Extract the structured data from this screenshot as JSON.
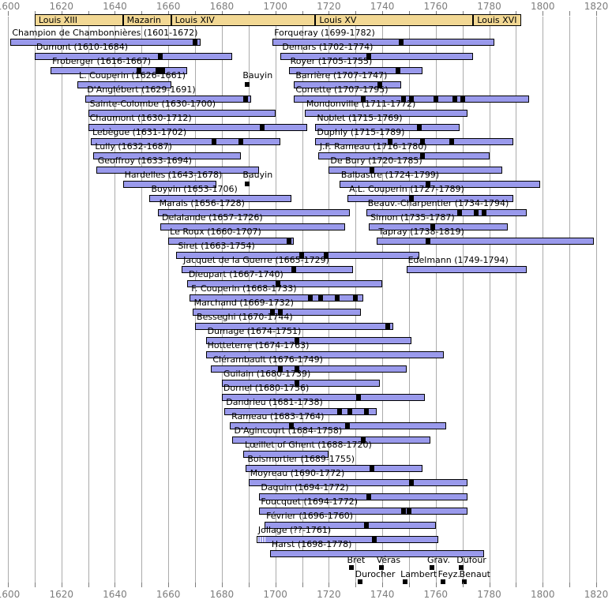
{
  "chart_data": {
    "type": "timeline",
    "title": "",
    "x_axis": {
      "min": 1600,
      "max": 1820,
      "label_step": 20,
      "grid_step": 10,
      "tick_labels": [
        "1600",
        "1620",
        "1640",
        "1660",
        "1680",
        "1700",
        "1720",
        "1740",
        "1760",
        "1780",
        "1800",
        "1820"
      ],
      "grid": true,
      "axis_positions": [
        "top",
        "bottom"
      ]
    },
    "reigns": [
      {
        "label": "Louis XIII",
        "start": 1610,
        "end": 1643
      },
      {
        "label": "Mazarin",
        "start": 1643,
        "end": 1661
      },
      {
        "label": "Louis XIV",
        "start": 1661,
        "end": 1715
      },
      {
        "label": "Louis XV",
        "start": 1715,
        "end": 1774
      },
      {
        "label": "Louis XVI",
        "start": 1774,
        "end": 1792
      }
    ],
    "composers": [
      {
        "row": 1,
        "side": "left",
        "label": "Champion de Chambonnières (1601-1672)",
        "start": 1601,
        "end": 1672,
        "publications": [
          1670
        ]
      },
      {
        "row": 2,
        "side": "left",
        "label": "Dumont (1610-1684)",
        "start": 1610,
        "end": 1684,
        "publications": [
          1657
        ]
      },
      {
        "row": 3,
        "side": "left",
        "label": "Froberger (1616-1667)",
        "start": 1616,
        "end": 1667,
        "publications": [
          1649,
          1656,
          1658
        ]
      },
      {
        "row": 4,
        "side": "left",
        "label": "L. Couperin (1626-1661)",
        "start": 1626,
        "end": 1661,
        "publications": []
      },
      {
        "row": 5,
        "side": "left",
        "label": "D'Anglébert (1629-1691)",
        "start": 1629,
        "end": 1691,
        "publications": [
          1689
        ]
      },
      {
        "row": 6,
        "side": "left",
        "label": "Sainte-Colombe (1630-1700)",
        "start": 1630,
        "end": 1700,
        "publications": []
      },
      {
        "row": 7,
        "side": "left",
        "label": "Chaumont (1630-1712)",
        "start": 1630,
        "end": 1712,
        "publications": [
          1695
        ]
      },
      {
        "row": 8,
        "side": "left",
        "label": "Lebègue (1631-1702)",
        "start": 1631,
        "end": 1702,
        "publications": [
          1677,
          1687
        ]
      },
      {
        "row": 9,
        "side": "left",
        "label": "Lully (1632-1687)",
        "start": 1632,
        "end": 1687,
        "publications": []
      },
      {
        "row": 10,
        "side": "left",
        "label": "Geoffroy (1633-1694)",
        "start": 1633,
        "end": 1694,
        "publications": []
      },
      {
        "row": 11,
        "side": "left",
        "label": "Hardelles (1643-1678)",
        "start": 1643,
        "end": 1678,
        "publications": []
      },
      {
        "row": 12,
        "side": "left",
        "label": "Boyvin (1653-1706)",
        "start": 1653,
        "end": 1706,
        "publications": []
      },
      {
        "row": 13,
        "side": "left",
        "label": "Marais (1656-1728)",
        "start": 1656,
        "end": 1728,
        "publications": []
      },
      {
        "row": 14,
        "side": "left",
        "label": "Delalande (1657-1726)",
        "start": 1657,
        "end": 1726,
        "publications": []
      },
      {
        "row": 15,
        "side": "left",
        "label": "Le Roux (1660-1707)",
        "start": 1660,
        "end": 1707,
        "publications": [
          1705
        ]
      },
      {
        "row": 16,
        "side": "left",
        "label": "Siret (1663-1754)",
        "start": 1663,
        "end": 1754,
        "publications": [
          1710,
          1719
        ]
      },
      {
        "row": 17,
        "side": "left",
        "label": "Jacquet de la Guerre (1665-1729)",
        "start": 1665,
        "end": 1729,
        "publications": [
          1707
        ]
      },
      {
        "row": 18,
        "side": "left",
        "label": "Dieupart (1667-1740)",
        "start": 1667,
        "end": 1740,
        "publications": [
          1701
        ]
      },
      {
        "row": 19,
        "side": "left",
        "label": "F. Couperin (1668-1733)",
        "start": 1668,
        "end": 1733,
        "publications": [
          1713,
          1717,
          1723,
          1730
        ]
      },
      {
        "row": 20,
        "side": "left",
        "label": "Marchand (1669-1732)",
        "start": 1669,
        "end": 1732,
        "publications": [
          1699,
          1702
        ]
      },
      {
        "row": 21,
        "side": "left",
        "label": "Besseghi (1670-1744)",
        "start": 1670,
        "end": 1744,
        "publications": [
          1742
        ]
      },
      {
        "row": 22,
        "side": "left",
        "label": "Dumage (1674-1751)",
        "start": 1674,
        "end": 1751,
        "publications": [
          1708
        ]
      },
      {
        "row": 23,
        "side": "left",
        "label": "Hotteterre (1674-1763)",
        "start": 1674,
        "end": 1763,
        "publications": []
      },
      {
        "row": 24,
        "side": "left",
        "label": "Clérambault (1676-1749)",
        "start": 1676,
        "end": 1749,
        "publications": [
          1702,
          1708
        ]
      },
      {
        "row": 25,
        "side": "left",
        "label": "Guilain (1680-1739)",
        "start": 1680,
        "end": 1739,
        "publications": [
          1708
        ]
      },
      {
        "row": 26,
        "side": "left",
        "label": "Dornel (1680-1756)",
        "start": 1680,
        "end": 1756,
        "publications": [
          1731
        ]
      },
      {
        "row": 27,
        "side": "left",
        "label": "Dandrieu (1681-1738)",
        "start": 1681,
        "end": 1738,
        "publications": [
          1724,
          1728,
          1734
        ]
      },
      {
        "row": 28,
        "side": "left",
        "label": "Rameau (1683-1764)",
        "start": 1683,
        "end": 1764,
        "publications": [
          1706,
          1727
        ]
      },
      {
        "row": 29,
        "side": "left",
        "label": "D'Agincourt (1684-1758)",
        "start": 1684,
        "end": 1758,
        "publications": [
          1733
        ]
      },
      {
        "row": 30,
        "side": "left",
        "label": "Lœillet of Ghent (1688-1720)",
        "start": 1688,
        "end": 1720,
        "publications": []
      },
      {
        "row": 31,
        "side": "left",
        "label": "Boismortier (1689-1755)",
        "start": 1689,
        "end": 1755,
        "publications": [
          1736
        ]
      },
      {
        "row": 32,
        "side": "left",
        "label": "Moyreau (1690-1772)",
        "start": 1690,
        "end": 1772,
        "publications": [
          1751
        ]
      },
      {
        "row": 33,
        "side": "left",
        "label": "Daquin (1694-1772)",
        "start": 1694,
        "end": 1772,
        "publications": [
          1735
        ]
      },
      {
        "row": 34,
        "side": "left",
        "label": "Foucquet (1694-1772)",
        "start": 1694,
        "end": 1772,
        "publications": [
          1748,
          1750
        ]
      },
      {
        "row": 35,
        "side": "left",
        "label": "Février (1696-1760)",
        "start": 1696,
        "end": 1760,
        "publications": [
          1734
        ]
      },
      {
        "row": 36,
        "side": "left",
        "label": "Jollage (??-1761)",
        "start": null,
        "approx_start": 1693,
        "uncertain_start": true,
        "end": 1761,
        "publications": [
          1737
        ]
      },
      {
        "row": 37,
        "side": "left",
        "label": "Harst (1698-1778)",
        "start": 1698,
        "end": 1778,
        "publications": []
      },
      {
        "row": 1,
        "side": "right",
        "label": "Forqueray (1699-1782)",
        "start": 1699,
        "end": 1782,
        "publications": [
          1747
        ]
      },
      {
        "row": 2,
        "side": "right",
        "label": "Demars (1702-1774)",
        "start": 1702,
        "end": 1774,
        "publications": [
          1735
        ]
      },
      {
        "row": 3,
        "side": "right",
        "label": "Royer (1705-1755)",
        "start": 1705,
        "end": 1755,
        "publications": [
          1746
        ]
      },
      {
        "row": 4,
        "side": "right",
        "label": "Barrière (1707-1747)",
        "start": 1707,
        "end": 1747,
        "publications": [
          1739
        ]
      },
      {
        "row": 5,
        "side": "right",
        "label": "Corrette (1707-1795)",
        "start": 1707,
        "end": 1795,
        "publications": [
          1733,
          1748,
          1751,
          1760,
          1767,
          1770
        ]
      },
      {
        "row": 6,
        "side": "right",
        "label": "Mondonville (1711-1772)",
        "start": 1711,
        "end": 1772,
        "publications": []
      },
      {
        "row": 7,
        "side": "right",
        "label": "Noblet (1715-1769)",
        "start": 1715,
        "end": 1769,
        "publications": [
          1754
        ]
      },
      {
        "row": 8,
        "side": "right",
        "label": "Duphly (1715-1789)",
        "start": 1715,
        "end": 1789,
        "publications": [
          1743,
          1755,
          1766
        ]
      },
      {
        "row": 9,
        "side": "right",
        "label": "J.F. Rameau (1716-1780)",
        "start": 1716,
        "end": 1780,
        "publications": [
          1755
        ]
      },
      {
        "row": 10,
        "side": "right",
        "label": "De Bury (1720-1785)",
        "start": 1720,
        "end": 1785,
        "publications": [
          1736
        ]
      },
      {
        "row": 11,
        "side": "right",
        "label": "Balbastre (1724-1799)",
        "start": 1724,
        "end": 1799,
        "publications": [
          1757
        ]
      },
      {
        "row": 12,
        "side": "right",
        "label": "A.L. Couperin (1727-1789)",
        "start": 1727,
        "end": 1789,
        "publications": [
          1751
        ]
      },
      {
        "row": 13,
        "side": "right",
        "label": "Beauv.-Charpentier (1734-1794)",
        "start": 1734,
        "end": 1794,
        "publications": [
          1769,
          1775,
          1778
        ]
      },
      {
        "row": 14,
        "side": "right",
        "label": "Simon (1735-1787)",
        "start": 1735,
        "end": 1787,
        "publications": [
          1759
        ]
      },
      {
        "row": 15,
        "side": "right",
        "label": "Tapray (1738-1819)",
        "start": 1738,
        "end": 1819,
        "publications": [
          1757
        ]
      },
      {
        "row": 17,
        "side": "right",
        "label": "Edelmann (1749-1794)",
        "start": 1749,
        "end": 1794,
        "publications": []
      }
    ],
    "point_annotations": [
      {
        "label": "Bauyin",
        "year": 1689,
        "row": 4
      },
      {
        "label": "Bauyin",
        "year": 1689,
        "row": 11
      }
    ],
    "flourished_points": [
      {
        "label": "Bret",
        "year": 1728,
        "line": 1
      },
      {
        "label": "Véras",
        "year": 1739,
        "line": 1
      },
      {
        "label": "Grav.",
        "year": 1758,
        "line": 1
      },
      {
        "label": "Dufour",
        "year": 1769,
        "line": 1
      },
      {
        "label": "Durocher",
        "year": 1731,
        "line": 2
      },
      {
        "label": "Lambert",
        "year": 1748,
        "line": 2
      },
      {
        "label": "Feyz.",
        "year": 1762,
        "line": 2
      },
      {
        "label": "Benaut",
        "year": 1770,
        "line": 2
      }
    ],
    "colors": {
      "background": "#ffffff",
      "bar_fill": "#9a9aec",
      "bar_border": "#000000",
      "reign_fill": "#f2d894",
      "reign_border": "#000000",
      "grid": "#ababab",
      "axis_text": "#7d7d7d",
      "marker": "#000000",
      "label_text": "#000000"
    }
  }
}
